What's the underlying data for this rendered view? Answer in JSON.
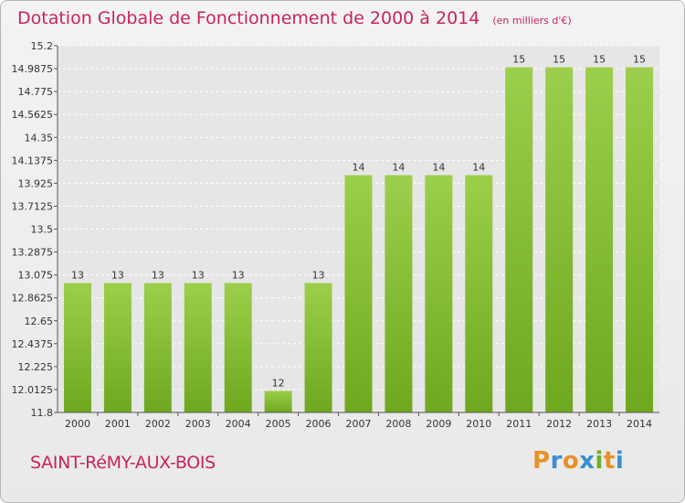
{
  "header": {
    "title": "Dotation Globale de Fonctionnement de 2000 à 2014",
    "unit_note": "(en milliers d'€)"
  },
  "footer": {
    "commune": "SAINT-RéMY-AUX-BOIS",
    "logo": "Proxiti"
  },
  "colors": {
    "title": "#c8245a",
    "bar_light": "#9ccf4b",
    "bar_dark": "#6ea81f",
    "logo_letters": [
      "#e8902a",
      "#3a8fd0",
      "#e8902a",
      "#3a8fd0",
      "#6aae2a",
      "#e8902a",
      "#3a8fd0"
    ]
  },
  "chart_data": {
    "type": "bar",
    "title": "Dotation Globale de Fonctionnement de 2000 à 2014",
    "subtitle": "(en milliers d'€)",
    "categories": [
      "2000",
      "2001",
      "2002",
      "2003",
      "2004",
      "2005",
      "2006",
      "2007",
      "2008",
      "2009",
      "2010",
      "2011",
      "2012",
      "2013",
      "2014"
    ],
    "values": [
      13,
      13,
      13,
      13,
      13,
      12,
      13,
      14,
      14,
      14,
      14,
      15,
      15,
      15,
      15
    ],
    "value_labels": [
      "13",
      "13",
      "13",
      "13",
      "13",
      "12",
      "13",
      "14",
      "14",
      "14",
      "14",
      "15",
      "15",
      "15",
      "15"
    ],
    "ylim": [
      11.8,
      15.2
    ],
    "yticks": [
      "11.8",
      "12.0125",
      "12.225",
      "12.4375",
      "12.65",
      "12.8625",
      "13.075",
      "13.2875",
      "13.5",
      "13.7125",
      "13.925",
      "14.1375",
      "14.35",
      "14.5625",
      "14.775",
      "14.9875",
      "15.2"
    ],
    "grid": true,
    "legend": "none"
  }
}
